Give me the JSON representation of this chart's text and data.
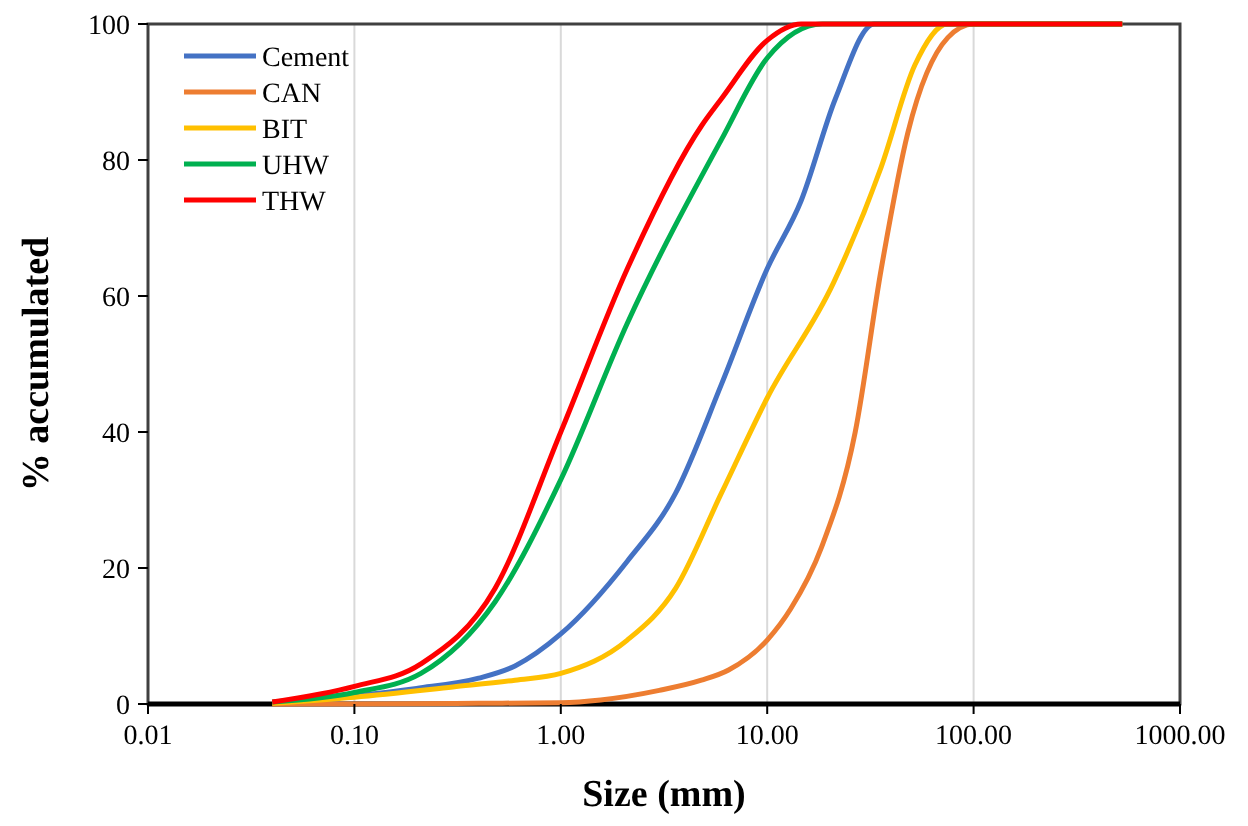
{
  "chart_data": {
    "type": "line",
    "xlabel": "Size (mm)",
    "ylabel": "% accumulated",
    "log": "x",
    "xlim": [
      0.01,
      1000
    ],
    "xticks": [
      0.01,
      {
        "value": 0.1,
        "label": "0.10"
      },
      {
        "value": 1,
        "label": "1.00"
      },
      {
        "value": 10,
        "label": "10.00"
      },
      {
        "value": 100,
        "label": "100.00"
      },
      {
        "value": 1000,
        "label": "1000.00"
      }
    ],
    "ylim": [
      0,
      100
    ],
    "yticks": [
      0,
      20,
      40,
      60,
      80,
      100
    ],
    "grid": "x",
    "legend": "top left",
    "marker": "none",
    "line_style": "solid",
    "series": [
      {
        "name": "Cement",
        "color": "#4472c4",
        "x": [
          0.04,
          0.1,
          0.2,
          0.4,
          0.6,
          1,
          2.1,
          3.6,
          6,
          10,
          14.6,
          21.4,
          33,
          50,
          525
        ],
        "values": [
          0.2,
          1.2,
          2.3,
          3.8,
          5.6,
          10.3,
          21,
          31,
          47,
          64,
          74,
          89,
          100,
          100,
          100
        ]
      },
      {
        "name": "CAN",
        "color": "#ed7d31",
        "x": [
          0.04,
          0.1,
          0.4,
          1,
          1.56,
          3,
          4.8,
          6.5,
          10,
          13,
          18.3,
          26.7,
          35.7,
          48,
          75,
          100,
          525
        ],
        "values": [
          0,
          0,
          0.1,
          0.2,
          0.6,
          2,
          3.5,
          5,
          9.4,
          14,
          23,
          40,
          64,
          84,
          98,
          100,
          100
        ]
      },
      {
        "name": "BIT",
        "color": "#ffc000",
        "x": [
          0.04,
          0.1,
          0.3,
          0.6,
          1,
          2.1,
          3.6,
          6,
          10,
          21,
          35.7,
          52,
          75,
          525
        ],
        "values": [
          0.1,
          1,
          2.5,
          3.5,
          4.5,
          9.4,
          17,
          31,
          45,
          62,
          79,
          94,
          100,
          100
        ]
      },
      {
        "name": "UHW",
        "color": "#00b050",
        "x": [
          0.04,
          0.1,
          0.21,
          0.48,
          1,
          2.1,
          6,
          10,
          18.5,
          525
        ],
        "values": [
          0.3,
          1.7,
          4.5,
          15,
          33,
          56,
          83,
          95,
          100,
          100
        ]
      },
      {
        "name": "THW",
        "color": "#ff0000",
        "x": [
          0.04,
          0.1,
          0.21,
          0.48,
          1,
          2.1,
          4.8,
          6,
          10,
          14.6,
          525
        ],
        "values": [
          0.3,
          2.6,
          5.9,
          17,
          40,
          64,
          85,
          89,
          97.6,
          100,
          100
        ]
      }
    ]
  }
}
